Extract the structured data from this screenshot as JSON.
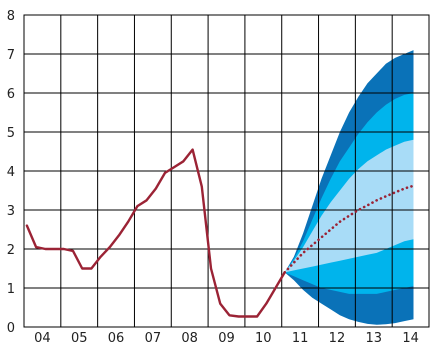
{
  "chart_data": {
    "type": "line",
    "title": "",
    "xlabel": "",
    "ylabel": "",
    "x_tick_labels": [
      "04",
      "05",
      "06",
      "07",
      "08",
      "09",
      "10",
      "11",
      "12",
      "13",
      "14"
    ],
    "y_tick_labels": [
      "0",
      "1",
      "2",
      "3",
      "4",
      "5",
      "6",
      "7",
      "8"
    ],
    "xlim": [
      2003.67,
      2014.67
    ],
    "ylim": [
      0,
      8
    ],
    "grid": true,
    "legend": "none",
    "colors": {
      "history_line": "#9b2335",
      "projection_line": "#9b2335",
      "band_outer": "#0a72b8",
      "band_middle": "#00b4ec",
      "band_inner": "#a8dcf7",
      "grid": "#000000"
    },
    "series": [
      {
        "style": "solid",
        "x": [
          2003.75,
          2004.0,
          2004.25,
          2004.5,
          2004.75,
          2005.0,
          2005.25,
          2005.5,
          2005.75,
          2006.0,
          2006.25,
          2006.5,
          2006.75,
          2007.0,
          2007.25,
          2007.5,
          2007.75,
          2008.0,
          2008.25,
          2008.5,
          2008.75,
          2009.0,
          2009.25,
          2009.5,
          2009.75,
          2010.0,
          2010.25,
          2010.5,
          2010.75
        ],
        "y": [
          2.6,
          2.05,
          2.0,
          2.0,
          2.0,
          1.95,
          1.5,
          1.5,
          1.8,
          2.05,
          2.35,
          2.7,
          3.1,
          3.25,
          3.55,
          3.95,
          4.1,
          4.25,
          4.55,
          3.6,
          1.5,
          0.6,
          0.3,
          0.27,
          0.27,
          0.27,
          0.6,
          1.0,
          1.4
        ]
      },
      {
        "style": "dotted",
        "x": [
          2010.75,
          2011.0,
          2011.25,
          2011.5,
          2011.75,
          2012.0,
          2012.25,
          2012.5,
          2012.75,
          2013.0,
          2013.25,
          2013.5,
          2013.75,
          2014.0,
          2014.25
        ],
        "y": [
          1.4,
          1.65,
          1.9,
          2.1,
          2.3,
          2.5,
          2.7,
          2.85,
          3.0,
          3.12,
          3.25,
          3.35,
          3.45,
          3.55,
          3.62
        ]
      }
    ],
    "fan_bands": {
      "x": [
        2010.75,
        2011.0,
        2011.25,
        2011.5,
        2011.75,
        2012.0,
        2012.25,
        2012.5,
        2012.75,
        2013.0,
        2013.25,
        2013.5,
        2013.75,
        2014.0,
        2014.25
      ],
      "outer": {
        "upper": [
          1.4,
          1.8,
          2.4,
          3.1,
          3.8,
          4.4,
          5.0,
          5.5,
          5.9,
          6.25,
          6.5,
          6.75,
          6.9,
          7.0,
          7.1
        ],
        "lower": [
          1.4,
          1.2,
          0.95,
          0.75,
          0.6,
          0.45,
          0.3,
          0.2,
          0.13,
          0.08,
          0.06,
          0.07,
          0.1,
          0.15,
          0.2
        ]
      },
      "middle": {
        "upper": [
          1.4,
          1.75,
          2.2,
          2.75,
          3.3,
          3.8,
          4.25,
          4.6,
          4.95,
          5.25,
          5.5,
          5.7,
          5.85,
          5.95,
          6.0
        ],
        "lower": [
          1.4,
          1.3,
          1.2,
          1.1,
          1.0,
          0.95,
          0.9,
          0.85,
          0.85,
          0.85,
          0.85,
          0.9,
          0.95,
          1.0,
          1.05
        ]
      },
      "inner": {
        "upper": [
          1.4,
          1.7,
          2.05,
          2.45,
          2.85,
          3.2,
          3.5,
          3.8,
          4.05,
          4.25,
          4.4,
          4.55,
          4.65,
          4.75,
          4.8
        ],
        "lower": [
          1.4,
          1.45,
          1.5,
          1.55,
          1.6,
          1.65,
          1.7,
          1.75,
          1.8,
          1.85,
          1.9,
          2.0,
          2.1,
          2.2,
          2.25
        ]
      }
    }
  }
}
